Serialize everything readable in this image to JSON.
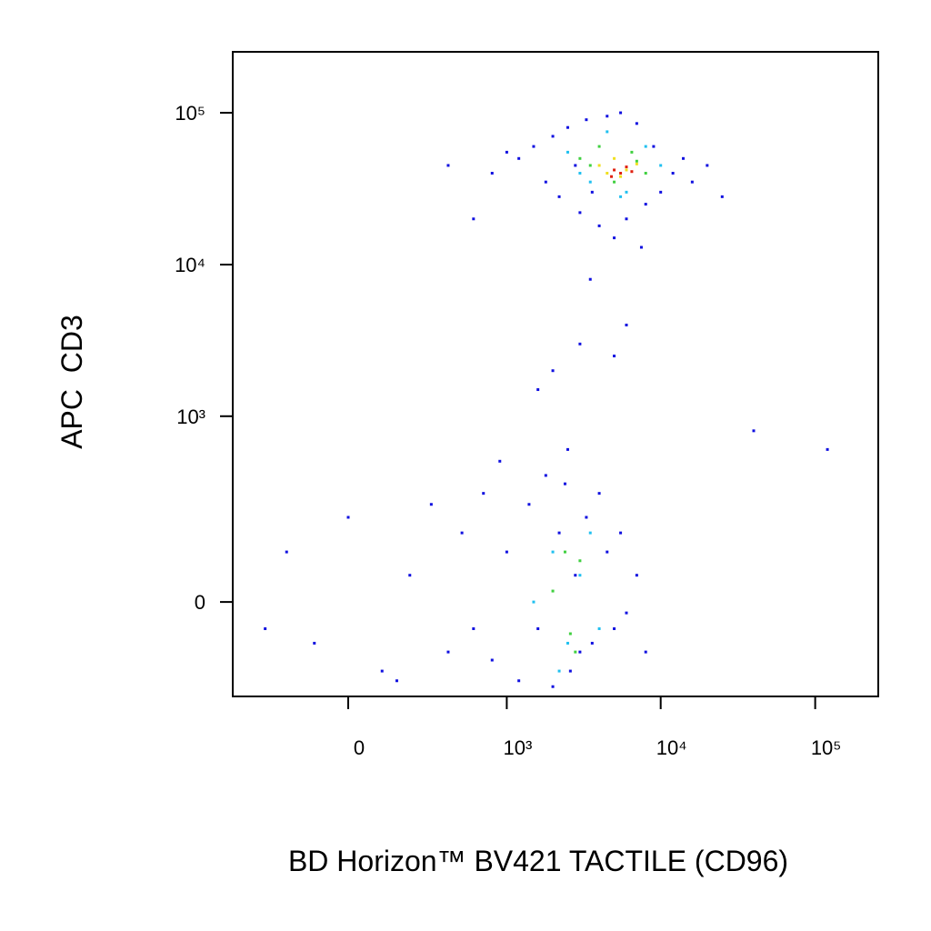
{
  "chart_data": {
    "type": "scatter",
    "x_label": "BD Horizon™ BV421 TACTILE (CD96)",
    "y_label": "APC  CD3",
    "xscale": "asinh",
    "xlinwidth": 190,
    "yscale": "asinh",
    "ylinwidth": 120,
    "xlim": [
      -514,
      256000
    ],
    "ylim": [
      -237,
      252000
    ],
    "xticks": [
      0,
      {
        "value": 1000,
        "label": "10³"
      },
      {
        "value": 10000,
        "label": "10⁴"
      },
      {
        "value": 100000,
        "label": "10⁵"
      }
    ],
    "yticks": [
      0,
      {
        "value": 1000,
        "label": "10³"
      },
      {
        "value": 10000,
        "label": "10⁴"
      },
      {
        "value": 100000,
        "label": "10⁵"
      }
    ],
    "series": [
      {
        "color": "#1010e0",
        "x": [
          1200,
          1500,
          1800,
          2000,
          2200,
          2500,
          2800,
          3000,
          3300,
          3600,
          4000,
          4500,
          5000,
          5500,
          6000,
          7000,
          8000,
          9000,
          10000,
          12000,
          14000,
          16000,
          20000,
          25000,
          800,
          600,
          400,
          1000,
          3500,
          7500,
          -200,
          -100,
          0,
          100,
          200,
          300,
          400,
          500,
          600,
          700,
          800,
          1000,
          1200,
          1400,
          1600,
          1800,
          2000,
          2200,
          2400,
          2600,
          2800,
          3000,
          3300,
          3600,
          4000,
          4500,
          5000,
          5500,
          6000,
          7000,
          8000,
          -300,
          150,
          900,
          2500,
          2000,
          3000,
          5000,
          1600,
          6000,
          40000,
          120000
        ],
        "y": [
          50000,
          60000,
          35000,
          70000,
          28000,
          80000,
          45000,
          22000,
          90000,
          30000,
          18000,
          95000,
          15000,
          100000,
          20000,
          85000,
          25000,
          60000,
          30000,
          40000,
          50000,
          35000,
          45000,
          28000,
          40000,
          20000,
          45000,
          55000,
          8000,
          13000,
          100,
          -80,
          200,
          -150,
          50,
          250,
          -100,
          150,
          -50,
          300,
          -120,
          100,
          -180,
          250,
          -50,
          400,
          -200,
          150,
          350,
          -150,
          50,
          -100,
          200,
          -80,
          300,
          100,
          -50,
          150,
          -20,
          50,
          -100,
          -50,
          -180,
          500,
          600,
          2000,
          3000,
          2500,
          1500,
          4000,
          800,
          600
        ]
      },
      {
        "color": "#20c0f0",
        "x": [
          2500,
          3500,
          4500,
          6000,
          8000,
          10000,
          3000,
          5500,
          1500,
          2000,
          2500,
          3000,
          3500,
          2200,
          4000
        ],
        "y": [
          55000,
          35000,
          75000,
          30000,
          60000,
          45000,
          40000,
          28000,
          0,
          100,
          -80,
          50,
          150,
          -150,
          -50
        ]
      },
      {
        "color": "#40d040",
        "x": [
          3000,
          4000,
          5000,
          6500,
          8000,
          3500,
          7000,
          2000,
          2600,
          3000,
          2400,
          2800
        ],
        "y": [
          50000,
          60000,
          35000,
          55000,
          40000,
          45000,
          48000,
          20,
          -60,
          80,
          100,
          -100
        ]
      },
      {
        "color": "#f0e020",
        "x": [
          4000,
          5000,
          6000,
          5500,
          4500,
          7000
        ],
        "y": [
          45000,
          50000,
          42000,
          38000,
          40000,
          46000
        ]
      },
      {
        "color": "#e02010",
        "x": [
          5000,
          5500,
          6000,
          4800,
          6500
        ],
        "y": [
          42000,
          40000,
          44000,
          38000,
          41000
        ]
      }
    ]
  }
}
